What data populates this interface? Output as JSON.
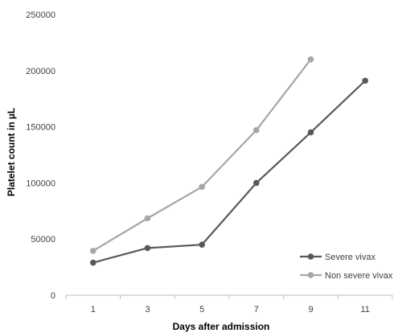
{
  "chart_data": {
    "type": "line",
    "title": "",
    "xlabel": "Days after admission",
    "ylabel": "Platelet count in µL",
    "categories": [
      "1",
      "3",
      "5",
      "7",
      "9",
      "11"
    ],
    "ylim": [
      0,
      250000
    ],
    "yticks": [
      "0",
      "50000",
      "100000",
      "150000",
      "200000",
      "250000"
    ],
    "grid": false,
    "legend_position": "bottom-right",
    "series": [
      {
        "name": "Severe vivax",
        "color": "#595959",
        "values": [
          29000,
          42000,
          45000,
          100000,
          145000,
          191000
        ]
      },
      {
        "name": "Non severe vivax",
        "color": "#a6a6a6",
        "values": [
          39500,
          68500,
          96500,
          147000,
          210000,
          null
        ]
      }
    ]
  }
}
